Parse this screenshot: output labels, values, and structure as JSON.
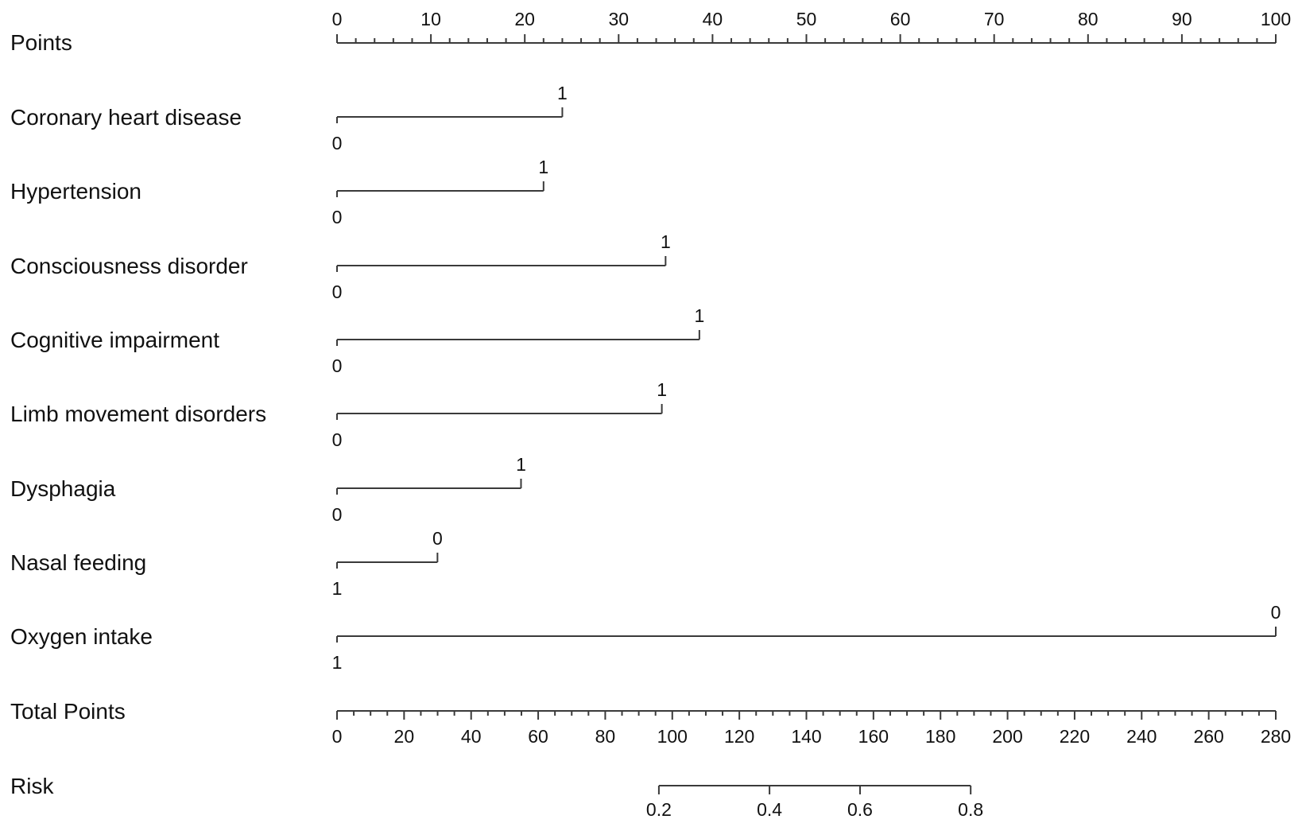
{
  "chart_data": {
    "type": "nomogram",
    "points_axis": {
      "label": "Points",
      "min": 0,
      "max": 100,
      "major_ticks": [
        0,
        10,
        20,
        30,
        40,
        50,
        60,
        70,
        80,
        90,
        100
      ],
      "minor_step": 2
    },
    "predictors": [
      {
        "label": "Coronary heart disease",
        "levels": [
          {
            "text": "0",
            "points": 0
          },
          {
            "text": "1",
            "points": 24
          }
        ]
      },
      {
        "label": "Hypertension",
        "levels": [
          {
            "text": "0",
            "points": 0
          },
          {
            "text": "1",
            "points": 22
          }
        ]
      },
      {
        "label": "Consciousness disorder",
        "levels": [
          {
            "text": "0",
            "points": 0
          },
          {
            "text": "1",
            "points": 35
          }
        ]
      },
      {
        "label": "Cognitive impairment",
        "levels": [
          {
            "text": "0",
            "points": 0
          },
          {
            "text": "1",
            "points": 38.6
          }
        ]
      },
      {
        "label": "Limb movement disorders",
        "levels": [
          {
            "text": "0",
            "points": 0
          },
          {
            "text": "1",
            "points": 34.6
          }
        ]
      },
      {
        "label": "Dysphagia",
        "levels": [
          {
            "text": "0",
            "points": 0
          },
          {
            "text": "1",
            "points": 19.6
          }
        ]
      },
      {
        "label": "Nasal feeding",
        "levels": [
          {
            "text": "1",
            "points": 0
          },
          {
            "text": "0",
            "points": 10.7
          }
        ]
      },
      {
        "label": "Oxygen intake",
        "levels": [
          {
            "text": "1",
            "points": 0
          },
          {
            "text": "0",
            "points": 100
          }
        ]
      }
    ],
    "total_points_axis": {
      "label": "Total Points",
      "min": 0,
      "max": 280,
      "major_ticks": [
        0,
        20,
        40,
        60,
        80,
        100,
        120,
        140,
        160,
        180,
        200,
        220,
        240,
        260,
        280
      ],
      "minor_step": 5
    },
    "risk_axis": {
      "label": "Risk",
      "ticks": [
        {
          "text": "0.2",
          "total_points": 96
        },
        {
          "text": "0.4",
          "total_points": 129
        },
        {
          "text": "0.6",
          "total_points": 156
        },
        {
          "text": "0.8",
          "total_points": 189
        }
      ]
    },
    "grid": false
  }
}
